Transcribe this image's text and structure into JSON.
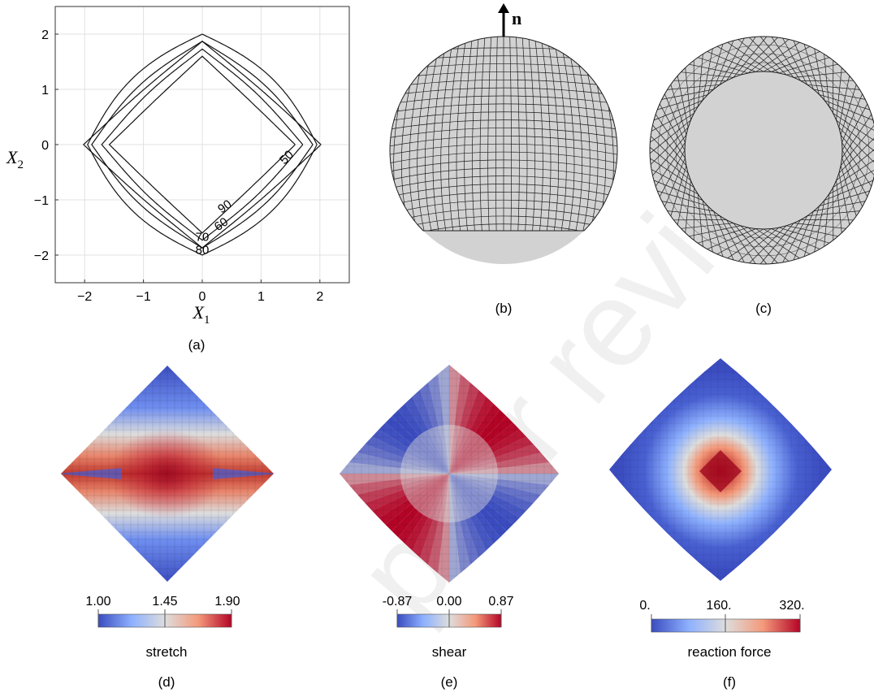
{
  "watermark": "peer review",
  "panel_a": {
    "label": "(a)",
    "xlabel_symbol": "X",
    "xlabel_sub": "1",
    "ylabel_symbol": "X",
    "ylabel_sub": "2",
    "contour_labels": [
      {
        "text": "50",
        "u": 1.48,
        "v": -0.28,
        "rot": -45
      },
      {
        "text": "90",
        "u": 0.42,
        "v": -1.18,
        "rot": -35
      },
      {
        "text": "60",
        "u": 0.36,
        "v": -1.5,
        "rot": -35
      },
      {
        "text": "70",
        "u": 0.0,
        "v": -1.74,
        "rot": 0
      },
      {
        "text": "80",
        "u": 0.0,
        "v": -1.98,
        "rot": 0
      }
    ]
  },
  "panel_b": {
    "label": "(b)",
    "normal_label": "n"
  },
  "panel_c": {
    "label": "(c)"
  },
  "panel_d": {
    "label": "(d)",
    "colorbar_title": "stretch",
    "ticks": [
      "1.00",
      "1.45",
      "1.90"
    ]
  },
  "panel_e": {
    "label": "(e)",
    "colorbar_title": "shear",
    "ticks": [
      "-0.87",
      "0.00",
      "0.87"
    ]
  },
  "panel_f": {
    "label": "(f)",
    "colorbar_title": "reaction force",
    "ticks": [
      "0.",
      "160.",
      "320."
    ]
  },
  "chart_data": {
    "type": "line",
    "title": "",
    "xlabel": "X1",
    "ylabel": "X2",
    "xlim": [
      -2.5,
      2.5
    ],
    "ylim": [
      -2.5,
      2.5
    ],
    "xticks": [
      -2,
      -1,
      0,
      1,
      2
    ],
    "yticks": [
      -2,
      -1,
      0,
      1,
      2
    ],
    "grid": true,
    "series": [
      {
        "name": "50",
        "top": 2.0,
        "side": 1.95,
        "bulge": 0.5
      },
      {
        "name": "60",
        "top": 1.87,
        "side": 1.88,
        "bulge": 0.34
      },
      {
        "name": "70",
        "top": 1.73,
        "side": 1.71,
        "bulge": 0.18
      },
      {
        "name": "80",
        "top": 1.87,
        "side": 2.02,
        "bulge": 0.06
      },
      {
        "name": "90",
        "top": 1.6,
        "side": 1.58,
        "bulge": 0.02
      }
    ]
  },
  "colors": {
    "map_low": "#3b4cc0",
    "map_mid": "#dddddd",
    "map_high": "#b40426",
    "surface": "#d2d2d2",
    "mesh": "#1e1e1e"
  }
}
